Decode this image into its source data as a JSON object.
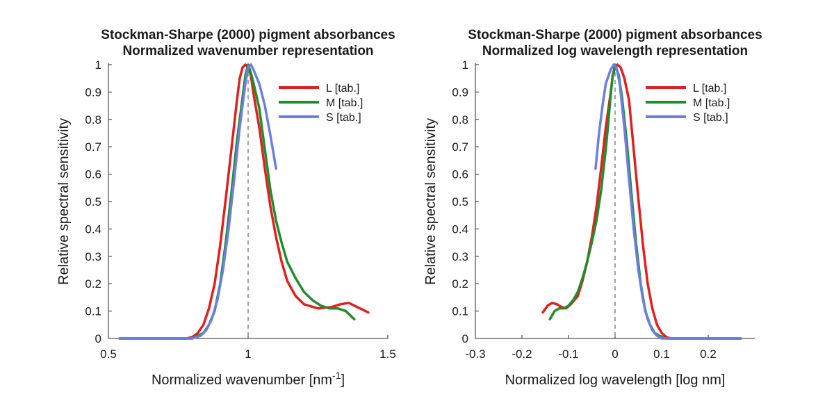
{
  "chart_data": [
    {
      "type": "line",
      "title": [
        "Stockman-Sharpe (2000) pigment absorbances",
        "Normalized wavenumber representation"
      ],
      "xlabel": "Normalized wavenumber [nm",
      "xlabel_sup": "-1",
      "xlabel_suffix": "]",
      "ylabel": "Relative spectral sensitivity",
      "xlim": [
        0.5,
        1.5
      ],
      "ylim": [
        0,
        1
      ],
      "xticks": [
        0.5,
        1,
        1.5
      ],
      "xtick_labels": [
        "0.5",
        "1",
        "1.5"
      ],
      "yticks": [
        0,
        0.1,
        0.2,
        0.3,
        0.4,
        0.5,
        0.6,
        0.7,
        0.8,
        0.9,
        1
      ],
      "ytick_labels": [
        "0",
        "0.1",
        "0.2",
        "0.3",
        "0.4",
        "0.5",
        "0.6",
        "0.7",
        "0.8",
        "0.9",
        "1"
      ],
      "reference_line_x": 1,
      "grid": false,
      "legend_position": "top-right",
      "series": [
        {
          "name": "L [tab.]",
          "color": "#e0201f",
          "points": [
            [
              0.54,
              0
            ],
            [
              0.78,
              0
            ],
            [
              0.8,
              0.005
            ],
            [
              0.82,
              0.02
            ],
            [
              0.84,
              0.05
            ],
            [
              0.86,
              0.11
            ],
            [
              0.88,
              0.2
            ],
            [
              0.9,
              0.34
            ],
            [
              0.92,
              0.51
            ],
            [
              0.94,
              0.69
            ],
            [
              0.96,
              0.87
            ],
            [
              0.97,
              0.95
            ],
            [
              0.98,
              0.99
            ],
            [
              0.99,
              1
            ],
            [
              1.0,
              0.99
            ],
            [
              1.01,
              0.96
            ],
            [
              1.02,
              0.89
            ],
            [
              1.04,
              0.77
            ],
            [
              1.06,
              0.62
            ],
            [
              1.08,
              0.48
            ],
            [
              1.1,
              0.37
            ],
            [
              1.12,
              0.28
            ],
            [
              1.14,
              0.21
            ],
            [
              1.17,
              0.155
            ],
            [
              1.2,
              0.125
            ],
            [
              1.25,
              0.11
            ],
            [
              1.3,
              0.115
            ],
            [
              1.33,
              0.125
            ],
            [
              1.36,
              0.13
            ],
            [
              1.39,
              0.115
            ],
            [
              1.43,
              0.095
            ]
          ]
        },
        {
          "name": "M [tab.]",
          "color": "#228b2e",
          "points": [
            [
              0.54,
              0
            ],
            [
              0.8,
              0
            ],
            [
              0.82,
              0.01
            ],
            [
              0.84,
              0.02
            ],
            [
              0.86,
              0.05
            ],
            [
              0.88,
              0.1
            ],
            [
              0.9,
              0.2
            ],
            [
              0.92,
              0.35
            ],
            [
              0.94,
              0.53
            ],
            [
              0.96,
              0.72
            ],
            [
              0.98,
              0.88
            ],
            [
              0.99,
              0.96
            ],
            [
              1.0,
              1
            ],
            [
              1.01,
              0.97
            ],
            [
              1.02,
              0.93
            ],
            [
              1.04,
              0.84
            ],
            [
              1.06,
              0.69
            ],
            [
              1.08,
              0.54
            ],
            [
              1.1,
              0.43
            ],
            [
              1.12,
              0.35
            ],
            [
              1.14,
              0.28
            ],
            [
              1.17,
              0.22
            ],
            [
              1.2,
              0.17
            ],
            [
              1.23,
              0.14
            ],
            [
              1.26,
              0.12
            ],
            [
              1.29,
              0.11
            ],
            [
              1.32,
              0.11
            ],
            [
              1.35,
              0.1
            ],
            [
              1.38,
              0.07
            ]
          ]
        },
        {
          "name": "S [tab.]",
          "color": "#6a7fe0",
          "points": [
            [
              0.54,
              0
            ],
            [
              0.8,
              0
            ],
            [
              0.83,
              0.01
            ],
            [
              0.85,
              0.03
            ],
            [
              0.87,
              0.07
            ],
            [
              0.89,
              0.14
            ],
            [
              0.91,
              0.25
            ],
            [
              0.93,
              0.4
            ],
            [
              0.95,
              0.58
            ],
            [
              0.97,
              0.77
            ],
            [
              0.99,
              0.93
            ],
            [
              1.0,
              0.99
            ],
            [
              1.01,
              1
            ],
            [
              1.02,
              0.98
            ],
            [
              1.04,
              0.93
            ],
            [
              1.06,
              0.85
            ],
            [
              1.08,
              0.74
            ],
            [
              1.1,
              0.62
            ]
          ]
        }
      ]
    },
    {
      "type": "line",
      "title": [
        "Stockman-Sharpe (2000) pigment absorbances",
        "Normalized log wavelength representation"
      ],
      "xlabel": "Normalized log wavelength [log nm]",
      "xlabel_sup": "",
      "xlabel_suffix": "",
      "ylabel": "Relative spectral sensitivity",
      "xlim": [
        -0.3,
        0.3
      ],
      "ylim": [
        0,
        1
      ],
      "xticks": [
        -0.3,
        -0.2,
        -0.1,
        0,
        0.1,
        0.2
      ],
      "xtick_labels": [
        "-0.3",
        "-0.2",
        "-0.1",
        "0",
        "0.1",
        "0.2"
      ],
      "yticks": [
        0,
        0.1,
        0.2,
        0.3,
        0.4,
        0.5,
        0.6,
        0.7,
        0.8,
        0.9,
        1
      ],
      "ytick_labels": [
        "0",
        "0.1",
        "0.2",
        "0.3",
        "0.4",
        "0.5",
        "0.6",
        "0.7",
        "0.8",
        "0.9",
        "1"
      ],
      "reference_line_x": 0,
      "grid": false,
      "legend_position": "top-right",
      "series": [
        {
          "name": "L [tab.]",
          "color": "#e0201f",
          "points": [
            [
              -0.155,
              0.095
            ],
            [
              -0.145,
              0.12
            ],
            [
              -0.135,
              0.13
            ],
            [
              -0.125,
              0.125
            ],
            [
              -0.115,
              0.115
            ],
            [
              -0.105,
              0.11
            ],
            [
              -0.095,
              0.125
            ],
            [
              -0.08,
              0.155
            ],
            [
              -0.07,
              0.21
            ],
            [
              -0.06,
              0.28
            ],
            [
              -0.05,
              0.37
            ],
            [
              -0.04,
              0.48
            ],
            [
              -0.03,
              0.62
            ],
            [
              -0.02,
              0.77
            ],
            [
              -0.01,
              0.89
            ],
            [
              -0.005,
              0.96
            ],
            [
              0,
              0.99
            ],
            [
              0.005,
              1
            ],
            [
              0.012,
              0.99
            ],
            [
              0.02,
              0.95
            ],
            [
              0.03,
              0.87
            ],
            [
              0.04,
              0.69
            ],
            [
              0.05,
              0.51
            ],
            [
              0.06,
              0.34
            ],
            [
              0.07,
              0.2
            ],
            [
              0.08,
              0.11
            ],
            [
              0.09,
              0.05
            ],
            [
              0.1,
              0.02
            ],
            [
              0.11,
              0.005
            ],
            [
              0.12,
              0
            ],
            [
              0.27,
              0
            ]
          ]
        },
        {
          "name": "M [tab.]",
          "color": "#228b2e",
          "points": [
            [
              -0.14,
              0.07
            ],
            [
              -0.13,
              0.1
            ],
            [
              -0.12,
              0.11
            ],
            [
              -0.11,
              0.11
            ],
            [
              -0.1,
              0.12
            ],
            [
              -0.09,
              0.14
            ],
            [
              -0.08,
              0.17
            ],
            [
              -0.07,
              0.22
            ],
            [
              -0.06,
              0.28
            ],
            [
              -0.05,
              0.35
            ],
            [
              -0.04,
              0.43
            ],
            [
              -0.03,
              0.54
            ],
            [
              -0.02,
              0.69
            ],
            [
              -0.015,
              0.78
            ],
            [
              -0.01,
              0.88
            ],
            [
              -0.005,
              0.96
            ],
            [
              0,
              1
            ],
            [
              0.008,
              0.96
            ],
            [
              0.015,
              0.88
            ],
            [
              0.025,
              0.72
            ],
            [
              0.035,
              0.53
            ],
            [
              0.045,
              0.35
            ],
            [
              0.055,
              0.2
            ],
            [
              0.065,
              0.1
            ],
            [
              0.075,
              0.05
            ],
            [
              0.085,
              0.02
            ],
            [
              0.1,
              0.005
            ],
            [
              0.11,
              0
            ],
            [
              0.27,
              0
            ]
          ]
        },
        {
          "name": "S [tab.]",
          "color": "#6a7fe0",
          "points": [
            [
              -0.042,
              0.62
            ],
            [
              -0.035,
              0.74
            ],
            [
              -0.027,
              0.85
            ],
            [
              -0.02,
              0.93
            ],
            [
              -0.01,
              0.98
            ],
            [
              -0.003,
              1
            ],
            [
              0.003,
              0.99
            ],
            [
              0.01,
              0.93
            ],
            [
              0.02,
              0.77
            ],
            [
              0.03,
              0.58
            ],
            [
              0.04,
              0.4
            ],
            [
              0.05,
              0.25
            ],
            [
              0.06,
              0.14
            ],
            [
              0.07,
              0.07
            ],
            [
              0.08,
              0.03
            ],
            [
              0.09,
              0.01
            ],
            [
              0.1,
              0
            ],
            [
              0.27,
              0
            ]
          ]
        }
      ]
    }
  ]
}
